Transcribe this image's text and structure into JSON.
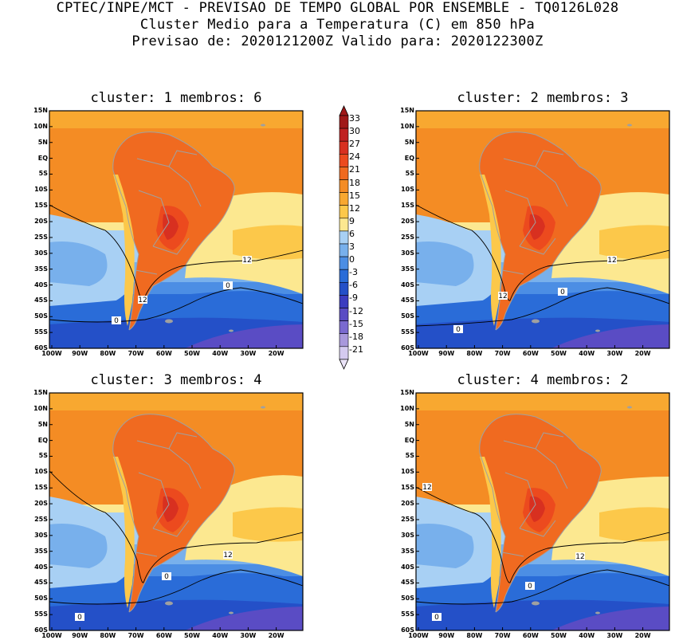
{
  "header": {
    "line1": "CPTEC/INPE/MCT - PREVISAO DE TEMPO GLOBAL POR ENSEMBLE - TQ0126L028",
    "line2": "Cluster Medio para a Temperatura (C) em 850 hPa",
    "line3": "Previsao de: 2020121200Z   Valido para: 2020122300Z"
  },
  "lat_labels": [
    "15N",
    "10N",
    "5N",
    "EQ",
    "5S",
    "10S",
    "15S",
    "20S",
    "25S",
    "30S",
    "35S",
    "40S",
    "45S",
    "50S",
    "55S",
    "60S"
  ],
  "lon_labels": [
    "100W",
    "90W",
    "80W",
    "70W",
    "60W",
    "50W",
    "40W",
    "30W",
    "20W"
  ],
  "panels": [
    {
      "title": "cluster: 1   membros: 6",
      "contour_labels": [
        "12",
        "12",
        "0",
        "0"
      ]
    },
    {
      "title": "cluster: 2   membros: 3",
      "contour_labels": [
        "12",
        "12",
        "0",
        "0"
      ]
    },
    {
      "title": "cluster: 3   membros: 4",
      "contour_labels": [
        "12",
        "0",
        "0"
      ]
    },
    {
      "title": "cluster: 4   membros: 2",
      "contour_labels": [
        "12",
        "12",
        "0",
        "0"
      ]
    }
  ],
  "colorbar": {
    "labels": [
      "33",
      "30",
      "27",
      "24",
      "21",
      "18",
      "15",
      "12",
      "9",
      "6",
      "3",
      "0",
      "-3",
      "-6",
      "-9",
      "-12",
      "-15",
      "-18",
      "-21"
    ],
    "colors": [
      "#a01818",
      "#c02020",
      "#d83020",
      "#ec4a1e",
      "#f06a20",
      "#f48c24",
      "#f8a830",
      "#fcc84a",
      "#fce890",
      "#a8d0f4",
      "#78b0ec",
      "#4c8ee4",
      "#2a6cd8",
      "#2450c8",
      "#3c3cc0",
      "#5a4cc4",
      "#7a6ad0",
      "#a898dc",
      "#d4caf0"
    ]
  }
}
